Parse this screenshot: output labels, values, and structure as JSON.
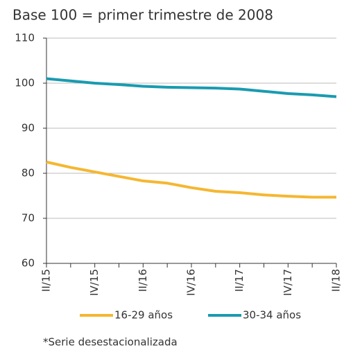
{
  "chart_data": {
    "type": "line",
    "title": "Base 100 = primer trimestre de 2008",
    "note": "*Serie desestacionalizada",
    "categories": [
      "II/15",
      null,
      "IV/15",
      null,
      "II/16",
      null,
      "IV/16",
      null,
      "II/17",
      null,
      "IV/17",
      null,
      "II/18"
    ],
    "series": [
      {
        "name": "16-29 años",
        "color": "#f5b731",
        "values": [
          82.5,
          81.3,
          80.3,
          79.3,
          78.3,
          77.8,
          76.8,
          76.0,
          75.7,
          75.2,
          74.9,
          74.7,
          74.7
        ]
      },
      {
        "name": "30-34 años",
        "color": "#1a9bb0",
        "values": [
          101.0,
          100.5,
          100.0,
          99.7,
          99.3,
          99.1,
          99.0,
          98.9,
          98.7,
          98.2,
          97.7,
          97.4,
          97.0
        ]
      }
    ],
    "ylim": [
      60,
      110
    ],
    "yticks": [
      60,
      70,
      80,
      90,
      100,
      110
    ],
    "grid": true
  }
}
